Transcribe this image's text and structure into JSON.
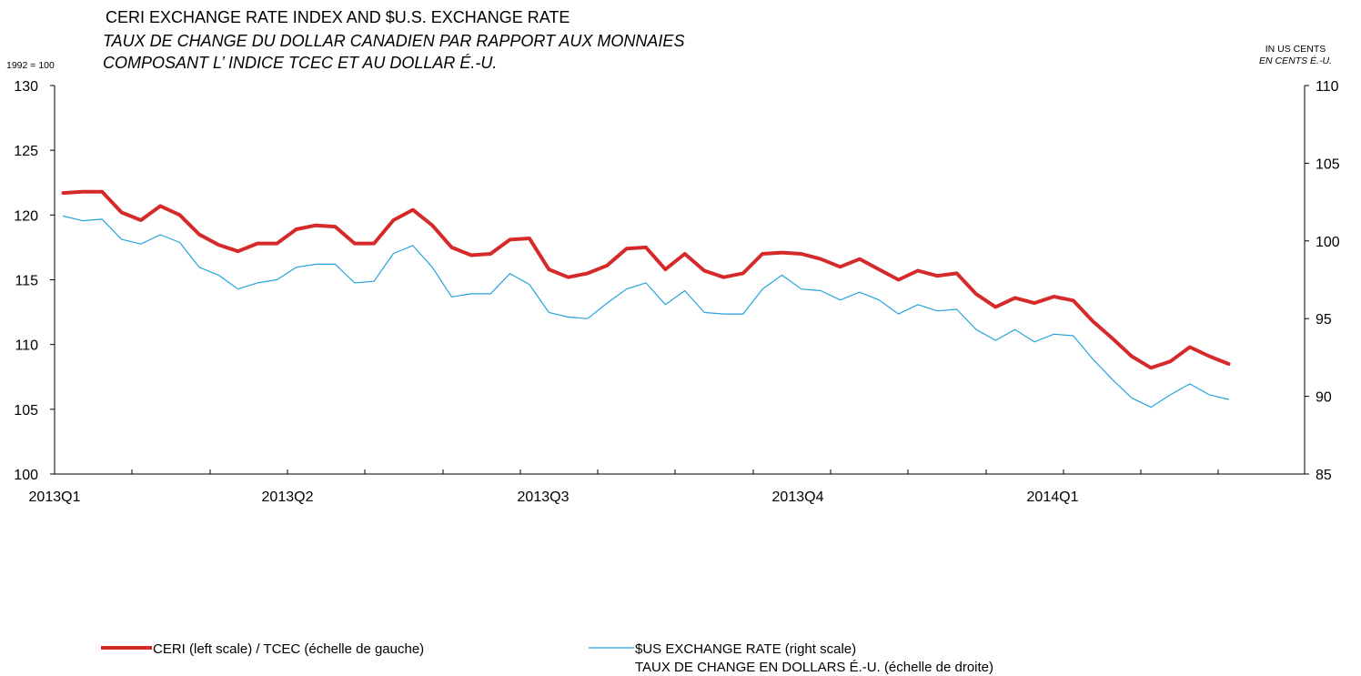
{
  "chart_data": {
    "type": "line",
    "title": "CERI EXCHANGE RATE INDEX AND $U.S. EXCHANGE RATE",
    "subtitle_lines": [
      "TAUX DE CHANGE DU DOLLAR CANADIEN PAR RAPPORT AUX MONNAIES",
      "COMPOSANT L’ INDICE TCEC ET AU DOLLAR É.-U."
    ],
    "left_axis_note": "1992 = 100",
    "right_axis_note": [
      "IN US CENTS",
      "EN CENTS É.-U."
    ],
    "x_labels": [
      "2013Q1",
      "2013Q2",
      "2013Q3",
      "2013Q4",
      "2014Q1"
    ],
    "y_left": {
      "ticks": [
        "100",
        "105",
        "110",
        "115",
        "120",
        "125",
        "130"
      ],
      "min": 100,
      "max": 130
    },
    "y_right": {
      "ticks": [
        "85",
        "90",
        "95",
        "100",
        "105",
        "110"
      ],
      "min": 85,
      "max": 110
    },
    "grid": false,
    "legend_position": "bottom",
    "series": [
      {
        "name": "CERI (left scale) / TCEC (échelle de gauche)",
        "name_lines": [
          "CERI (left scale) / TCEC (échelle de gauche)"
        ],
        "axis": "left",
        "color": "#d62a2a",
        "values": [
          121.7,
          121.8,
          121.8,
          120.2,
          119.6,
          120.7,
          120.0,
          118.5,
          117.7,
          117.2,
          117.8,
          117.8,
          118.9,
          119.2,
          119.1,
          117.8,
          117.8,
          119.6,
          120.4,
          119.2,
          117.5,
          116.9,
          117.0,
          118.1,
          118.2,
          115.8,
          115.2,
          115.5,
          116.1,
          117.4,
          117.5,
          115.8,
          117.0,
          115.7,
          115.2,
          115.5,
          117.0,
          117.1,
          117.0,
          116.6,
          116.0,
          116.6,
          115.8,
          115.0,
          115.7,
          115.3,
          115.5,
          113.9,
          112.9,
          113.6,
          113.2,
          113.7,
          113.4,
          111.8,
          110.5,
          109.1,
          108.2,
          108.7,
          109.8,
          109.1,
          108.5
        ]
      },
      {
        "name": "$US EXCHANGE RATE (right scale) TAUX DE CHANGE EN DOLLARS É.-U. (échelle de droite)",
        "name_lines": [
          "$US EXCHANGE RATE (right scale)",
          "TAUX DE CHANGE EN DOLLARS É.-U. (échelle de droite)"
        ],
        "axis": "right",
        "color": "#26a3dc",
        "values": [
          101.6,
          101.3,
          101.4,
          100.1,
          99.8,
          100.4,
          99.9,
          98.3,
          97.8,
          96.9,
          97.3,
          97.5,
          98.3,
          98.5,
          98.5,
          97.3,
          97.4,
          99.2,
          99.7,
          98.3,
          96.4,
          96.6,
          96.6,
          97.9,
          97.2,
          95.4,
          95.1,
          95.0,
          96.0,
          96.9,
          97.3,
          95.9,
          96.8,
          95.4,
          95.3,
          95.3,
          96.9,
          97.8,
          96.9,
          96.8,
          96.2,
          96.7,
          96.2,
          95.3,
          95.9,
          95.5,
          95.6,
          94.3,
          93.6,
          94.3,
          93.5,
          94.0,
          93.9,
          92.4,
          91.1,
          89.9,
          89.3,
          90.1,
          90.8,
          90.1,
          89.8
        ]
      }
    ]
  }
}
